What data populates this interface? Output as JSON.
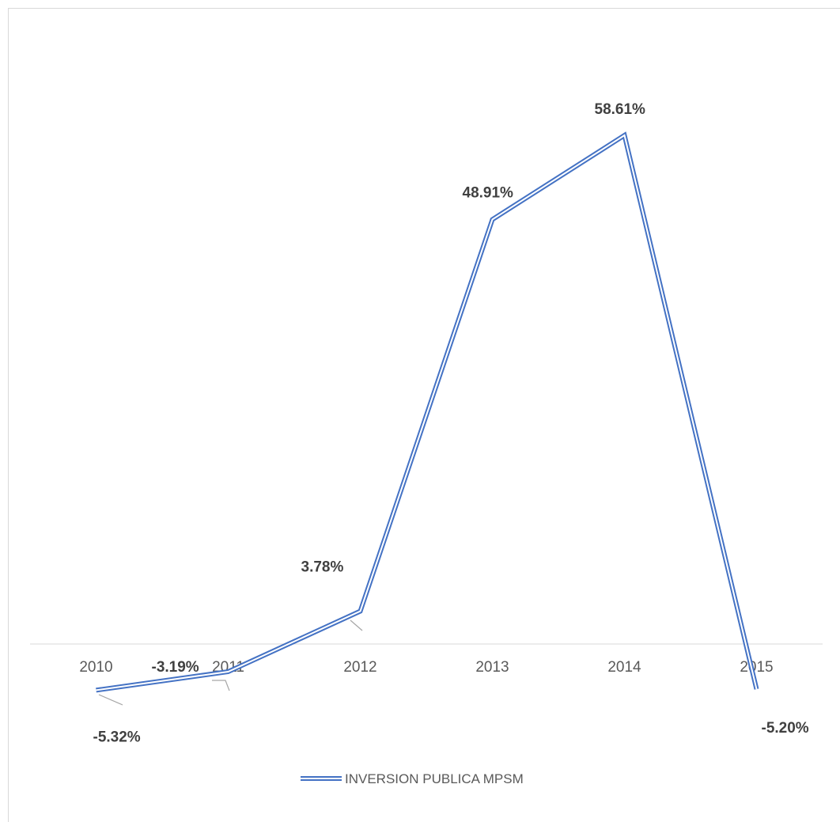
{
  "chart_data": {
    "type": "line",
    "categories": [
      "2010",
      "2011",
      "2012",
      "2013",
      "2014",
      "2015"
    ],
    "series": [
      {
        "name": "INVERSION PUBLICA MPSM",
        "values": [
          -5.32,
          -3.19,
          3.78,
          48.91,
          58.61,
          -5.2
        ],
        "labels": [
          "-5.32%",
          "-3.19%",
          "3.78%",
          "48.91%",
          "58.61%",
          "-5.20%"
        ]
      }
    ],
    "ylim": [
      -10,
      70
    ],
    "grid": false,
    "legend_position": "bottom",
    "colors": {
      "series": "#4472c4",
      "axis": "#d9d9d9",
      "leader": "#a6a6a6"
    }
  }
}
